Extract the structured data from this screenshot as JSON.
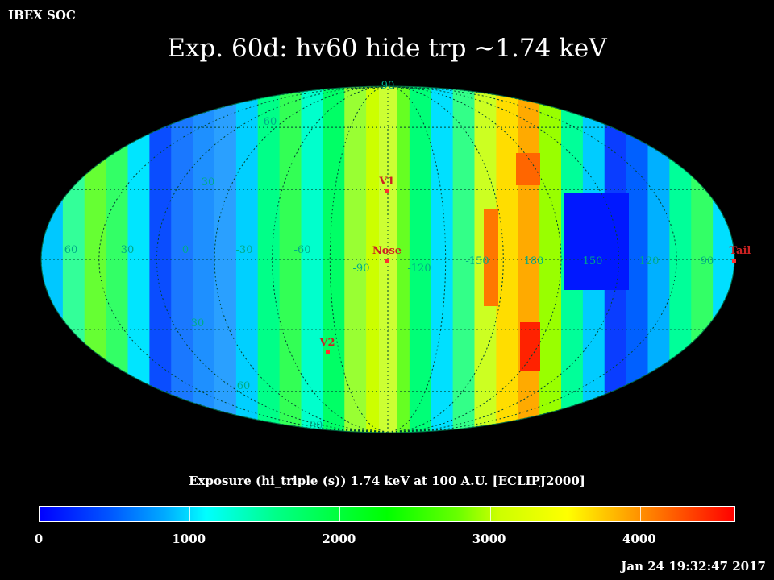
{
  "header": {
    "corner_label": "IBEX SOC",
    "title": "Exp.   60d: hv60 hide trp ~1.74 keV"
  },
  "map": {
    "projection": "Mollweide",
    "frame": "ECLIPJ2000",
    "lat_labels": [
      "90",
      "60",
      "30",
      "30",
      "60",
      "90"
    ],
    "lon_labels": [
      "60",
      "30",
      "0",
      "-30",
      "-60",
      "-90",
      "-120",
      "-150",
      "180",
      "150",
      "120",
      "90"
    ],
    "markers": [
      {
        "label": "V1",
        "lon": 255,
        "lat": 35
      },
      {
        "label": "Nose",
        "lon": 255,
        "lat": 5
      },
      {
        "label": "V2",
        "lon": 290,
        "lat": -32
      },
      {
        "label": "Tail",
        "lon": 75,
        "lat": 5
      }
    ],
    "marker_color": "#ff3030",
    "grid_label_color": "#00aa88"
  },
  "colorbar": {
    "title": "Exposure (hi_triple (s))  1.74 keV at 100 A.U. [ECLIPJ2000]",
    "ticks": [
      "0",
      "1000",
      "2000",
      "3000",
      "4000"
    ],
    "tick_values": [
      0,
      1000,
      2000,
      3000,
      4000
    ],
    "max": 4640
  },
  "footer": {
    "timestamp": "Jan 24 19:32:47 2017"
  }
}
